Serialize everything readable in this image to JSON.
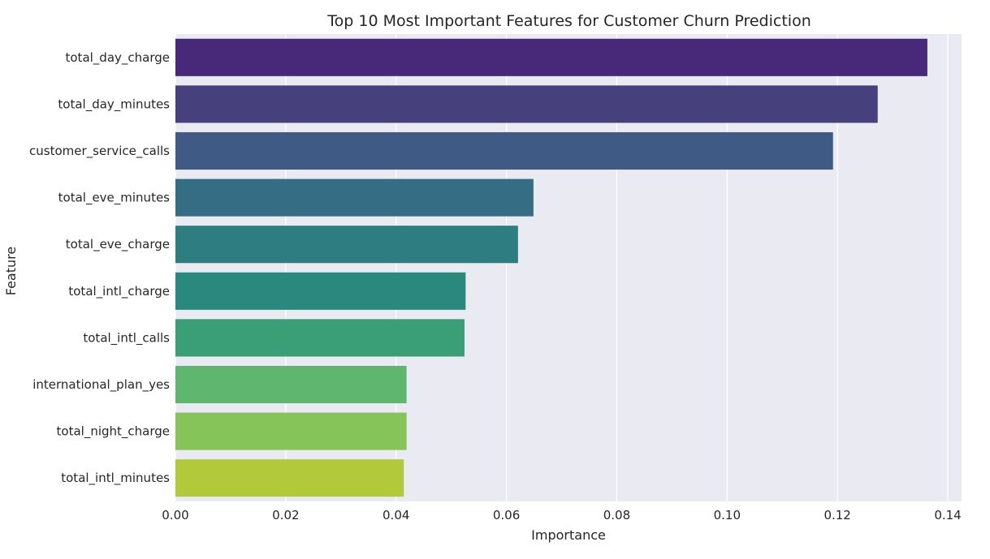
{
  "chart_data": {
    "type": "bar",
    "orientation": "horizontal",
    "title": "Top 10 Most Important Features for Customer Churn Prediction",
    "xlabel": "Importance",
    "ylabel": "Feature",
    "xlim": [
      0,
      0.1425
    ],
    "xticks": [
      0.0,
      0.02,
      0.04,
      0.06,
      0.08,
      0.1,
      0.12,
      0.14
    ],
    "xtick_labels": [
      "0.00",
      "0.02",
      "0.04",
      "0.06",
      "0.08",
      "0.10",
      "0.12",
      "0.14"
    ],
    "grid": true,
    "categories": [
      "total_day_charge",
      "total_day_minutes",
      "customer_service_calls",
      "total_eve_minutes",
      "total_eve_charge",
      "total_intl_charge",
      "total_intl_calls",
      "international_plan_yes",
      "total_night_charge",
      "total_intl_minutes"
    ],
    "values": [
      0.1363,
      0.1273,
      0.1192,
      0.0649,
      0.0621,
      0.0526,
      0.0524,
      0.0419,
      0.0419,
      0.0414
    ],
    "colors": [
      "#482878",
      "#46417d",
      "#3e5a85",
      "#346d84",
      "#2e7d80",
      "#28897c",
      "#3a9e77",
      "#5fb66e",
      "#86c45a",
      "#b1c93a"
    ]
  }
}
